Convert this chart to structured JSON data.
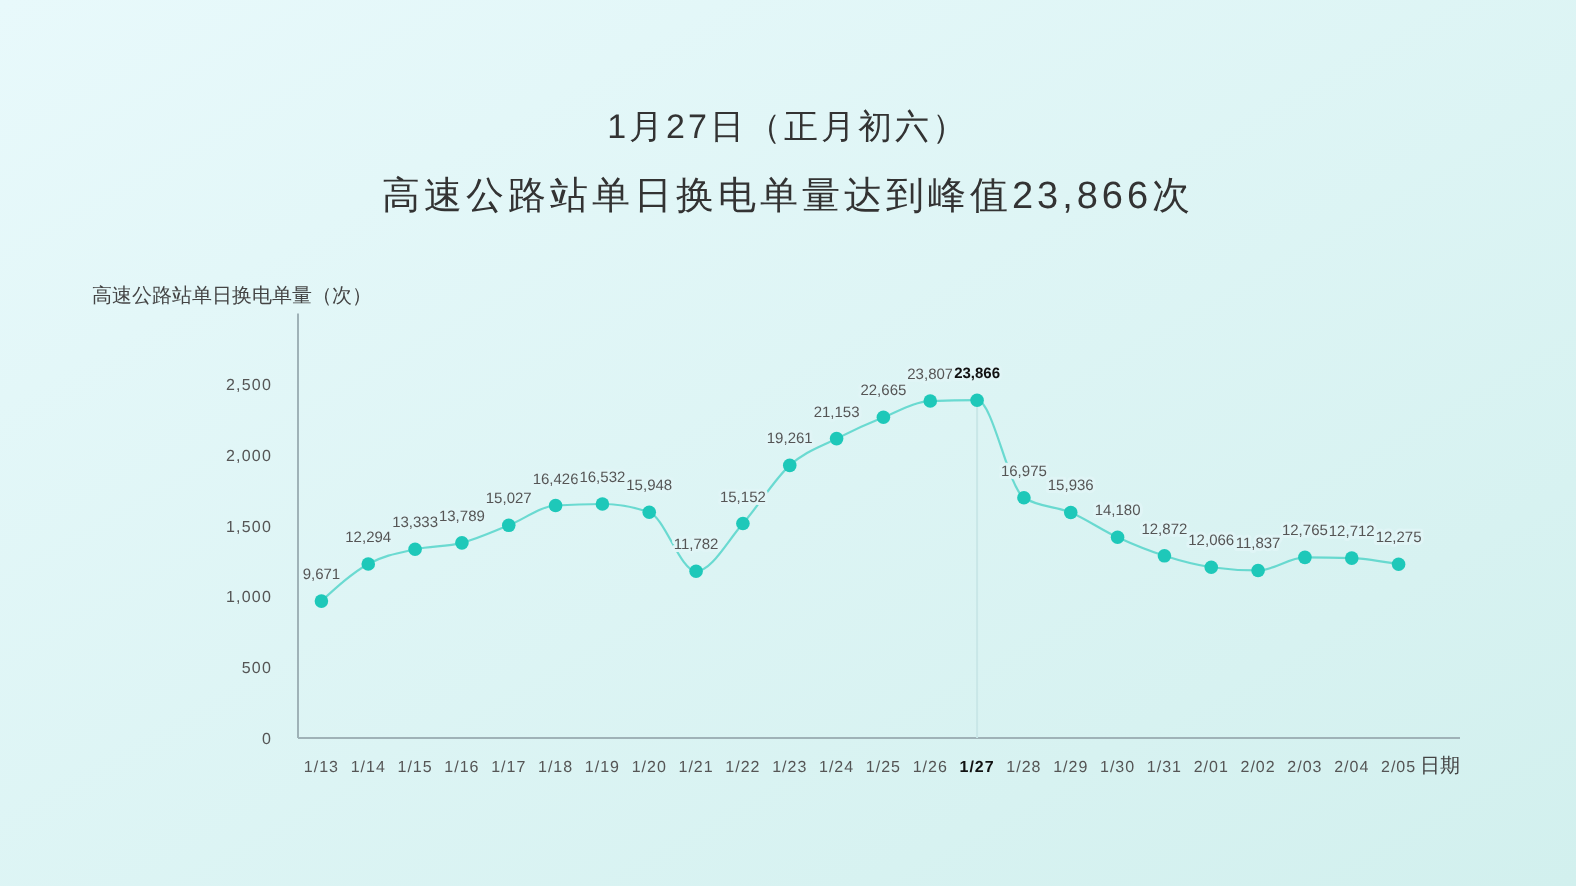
{
  "chart_data": {
    "type": "line",
    "title": "1月27日（正月初六）",
    "subtitle": "高速公路站单日换电单量达到峰值23,866次",
    "ylabel": "高速公路站单日换电单量（次）",
    "xlabel": "日期",
    "categories": [
      "1/13",
      "1/14",
      "1/15",
      "1/16",
      "1/17",
      "1/18",
      "1/19",
      "1/20",
      "1/21",
      "1/22",
      "1/23",
      "1/24",
      "1/25",
      "1/26",
      "1/27",
      "1/28",
      "1/29",
      "1/30",
      "1/31",
      "2/01",
      "2/02",
      "2/03",
      "2/04",
      "2/05"
    ],
    "series": [
      {
        "color": "#1ec8b9",
        "axis": "y2",
        "values": [
          9671,
          12294,
          13333,
          13789,
          15027,
          16426,
          16532,
          15948,
          11782,
          15152,
          19261,
          21153,
          22665,
          23807,
          23866,
          16975,
          15936,
          14180,
          12872,
          12066,
          11837,
          12765,
          12712,
          12275
        ],
        "value_labels": [
          "9,671",
          "12,294",
          "13,333",
          "13,789",
          "15,027",
          "16,426",
          "16,532",
          "15,948",
          "11,782",
          "15,152",
          "19,261",
          "21,153",
          "22,665",
          "23,807",
          "23,866",
          "16,975",
          "15,936",
          "14,180",
          "12,872",
          "12,066",
          "11,837",
          "12,765",
          "12,712",
          "12,275"
        ]
      }
    ],
    "ylim": [
      0,
      3000
    ],
    "yticks": [
      0,
      500,
      {
        "value": 1000,
        "label": "1,000"
      },
      {
        "value": 1500,
        "label": "1,500"
      },
      {
        "value": 2000,
        "label": "2,000"
      },
      {
        "value": 2500,
        "label": "2,500"
      }
    ],
    "y2lim": [
      0,
      30000
    ],
    "ref_lines": [
      {
        "axis": "x",
        "value": "1/27",
        "color": "#c9e7e8"
      }
    ],
    "marker": "circle",
    "line_style": "solid"
  }
}
